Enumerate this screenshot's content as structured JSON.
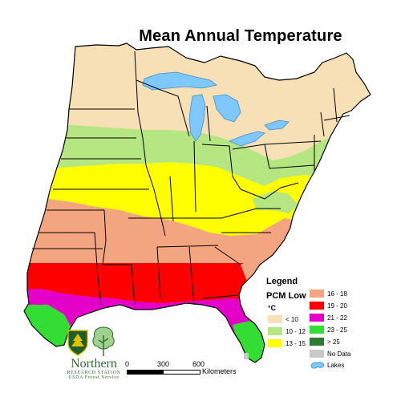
{
  "title": "Mean Annual Temperature",
  "legend": {
    "heading": "Legend",
    "subheading": "PCM Low",
    "unit": "°C",
    "entries": [
      {
        "label": "< 10",
        "color": "#f7dfb6"
      },
      {
        "label": "10 - 12",
        "color": "#b5e681"
      },
      {
        "label": "13 - 15",
        "color": "#ffff00"
      },
      {
        "label": "16 - 18",
        "color": "#f2a57f"
      },
      {
        "label": "19 - 20",
        "color": "#ff0000"
      },
      {
        "label": "21 - 22",
        "color": "#e400c8"
      },
      {
        "label": "23 - 25",
        "color": "#33dd33"
      },
      {
        "label": "> 25",
        "color": "#2f7a2f"
      },
      {
        "label": "No Data",
        "color": "#c9c9c9"
      },
      {
        "label": "Lakes",
        "color": "#7ec8ff"
      }
    ]
  },
  "logo": {
    "agency_line1": "Northern",
    "agency_line2": "RESEARCH STATION",
    "agency_line3": "USDA Forest Service"
  },
  "scale": {
    "ticks": [
      "0",
      "300",
      "600"
    ],
    "unit": "Kilometers"
  },
  "colors": {
    "state_borders": "#000000",
    "background": "#ffffff"
  }
}
